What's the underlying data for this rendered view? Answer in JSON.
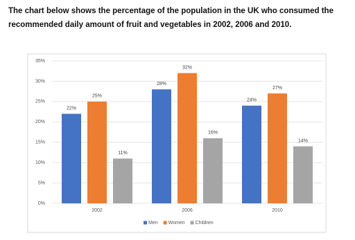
{
  "chart_data": {
    "type": "bar",
    "title": "The chart below shows the percentage of the population in the UK who consumed the recommended daily amount of fruit and vegetables in 2002, 2006 and 2010.",
    "categories": [
      "2002",
      "2006",
      "2010"
    ],
    "series": [
      {
        "name": "Men",
        "color": "#4472c4",
        "values": [
          22,
          28,
          24
        ],
        "value_labels": [
          "22%",
          "28%",
          "24%"
        ]
      },
      {
        "name": "Women",
        "color": "#ed7d31",
        "values": [
          25,
          32,
          27
        ],
        "value_labels": [
          "25%",
          "32%",
          "27%"
        ]
      },
      {
        "name": "Children",
        "color": "#a5a5a5",
        "values": [
          11,
          16,
          14
        ],
        "value_labels": [
          "11%",
          "16%",
          "14%"
        ]
      }
    ],
    "ylim": [
      0,
      35
    ],
    "yticks": [
      {
        "value": 0,
        "label": "0%"
      },
      {
        "value": 5,
        "label": "5%"
      },
      {
        "value": 10,
        "label": "10%"
      },
      {
        "value": 15,
        "label": "15%"
      },
      {
        "value": 20,
        "label": "20%"
      },
      {
        "value": 25,
        "label": "25%"
      },
      {
        "value": 30,
        "label": "30%"
      },
      {
        "value": 35,
        "label": "35%"
      }
    ],
    "grid": true,
    "legend": "bottom"
  }
}
